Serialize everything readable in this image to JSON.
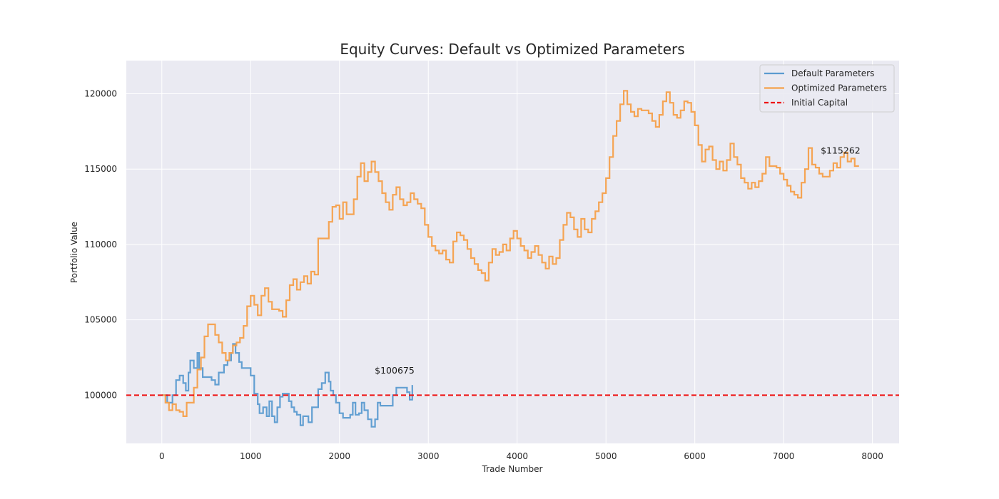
{
  "chart_data": {
    "type": "line",
    "title": "Equity Curves: Default vs Optimized Parameters",
    "xlabel": "Trade Number",
    "ylabel": "Portfolio Value",
    "xlim": [
      -400,
      8300
    ],
    "ylim": [
      96800,
      122200
    ],
    "x_ticks": [
      0,
      1000,
      2000,
      3000,
      4000,
      5000,
      6000,
      7000,
      8000
    ],
    "y_ticks": [
      100000,
      105000,
      110000,
      115000,
      120000
    ],
    "grid": true,
    "legend_position": "top-right",
    "series": [
      {
        "name": "Default Parameters",
        "color": "#5b9bd0",
        "points": [
          [
            0,
            100000
          ],
          [
            60,
            99500
          ],
          [
            120,
            100000
          ],
          [
            160,
            101000
          ],
          [
            200,
            101300
          ],
          [
            240,
            100800
          ],
          [
            270,
            100300
          ],
          [
            300,
            101500
          ],
          [
            320,
            102300
          ],
          [
            360,
            101800
          ],
          [
            400,
            102800
          ],
          [
            420,
            101800
          ],
          [
            460,
            101200
          ],
          [
            520,
            101200
          ],
          [
            560,
            101000
          ],
          [
            600,
            100700
          ],
          [
            640,
            101500
          ],
          [
            700,
            102000
          ],
          [
            740,
            102300
          ],
          [
            780,
            102800
          ],
          [
            800,
            103400
          ],
          [
            830,
            102800
          ],
          [
            870,
            102200
          ],
          [
            900,
            101800
          ],
          [
            960,
            101800
          ],
          [
            1000,
            101300
          ],
          [
            1040,
            100100
          ],
          [
            1080,
            99400
          ],
          [
            1100,
            98800
          ],
          [
            1140,
            99200
          ],
          [
            1180,
            98600
          ],
          [
            1210,
            99600
          ],
          [
            1240,
            98600
          ],
          [
            1270,
            98200
          ],
          [
            1300,
            99200
          ],
          [
            1330,
            99900
          ],
          [
            1360,
            100100
          ],
          [
            1400,
            100100
          ],
          [
            1430,
            99600
          ],
          [
            1460,
            99200
          ],
          [
            1490,
            98900
          ],
          [
            1520,
            98700
          ],
          [
            1560,
            98000
          ],
          [
            1590,
            98600
          ],
          [
            1620,
            98600
          ],
          [
            1650,
            98200
          ],
          [
            1690,
            99200
          ],
          [
            1720,
            99200
          ],
          [
            1760,
            100400
          ],
          [
            1800,
            100800
          ],
          [
            1840,
            101500
          ],
          [
            1880,
            100900
          ],
          [
            1900,
            100300
          ],
          [
            1930,
            100000
          ],
          [
            1960,
            99500
          ],
          [
            2000,
            98800
          ],
          [
            2040,
            98500
          ],
          [
            2080,
            98500
          ],
          [
            2120,
            98700
          ],
          [
            2150,
            99500
          ],
          [
            2180,
            98700
          ],
          [
            2220,
            98800
          ],
          [
            2250,
            99500
          ],
          [
            2280,
            99000
          ],
          [
            2320,
            98400
          ],
          [
            2360,
            97900
          ],
          [
            2400,
            98400
          ],
          [
            2430,
            99500
          ],
          [
            2460,
            99300
          ],
          [
            2500,
            99300
          ],
          [
            2560,
            99300
          ],
          [
            2600,
            100000
          ],
          [
            2640,
            100500
          ],
          [
            2700,
            100500
          ],
          [
            2740,
            100500
          ],
          [
            2760,
            100200
          ],
          [
            2790,
            99700
          ],
          [
            2820,
            100675
          ]
        ]
      },
      {
        "name": "Optimized Parameters",
        "color": "#f5a04a",
        "points": [
          [
            0,
            100000
          ],
          [
            40,
            99500
          ],
          [
            80,
            99000
          ],
          [
            120,
            99400
          ],
          [
            160,
            99000
          ],
          [
            200,
            98900
          ],
          [
            240,
            98600
          ],
          [
            280,
            99500
          ],
          [
            320,
            99500
          ],
          [
            360,
            100500
          ],
          [
            400,
            101700
          ],
          [
            440,
            102500
          ],
          [
            480,
            103900
          ],
          [
            520,
            104700
          ],
          [
            560,
            104700
          ],
          [
            600,
            104000
          ],
          [
            640,
            103500
          ],
          [
            680,
            102800
          ],
          [
            720,
            102300
          ],
          [
            760,
            102800
          ],
          [
            800,
            103300
          ],
          [
            840,
            103500
          ],
          [
            880,
            103800
          ],
          [
            920,
            104600
          ],
          [
            960,
            105900
          ],
          [
            1000,
            106600
          ],
          [
            1040,
            106000
          ],
          [
            1080,
            105300
          ],
          [
            1120,
            106600
          ],
          [
            1160,
            107100
          ],
          [
            1200,
            106200
          ],
          [
            1240,
            105700
          ],
          [
            1280,
            105700
          ],
          [
            1320,
            105600
          ],
          [
            1360,
            105200
          ],
          [
            1400,
            106300
          ],
          [
            1440,
            107300
          ],
          [
            1480,
            107700
          ],
          [
            1520,
            107000
          ],
          [
            1560,
            107500
          ],
          [
            1600,
            107900
          ],
          [
            1640,
            107400
          ],
          [
            1680,
            108200
          ],
          [
            1720,
            108000
          ],
          [
            1760,
            110400
          ],
          [
            1800,
            110400
          ],
          [
            1840,
            110400
          ],
          [
            1880,
            111500
          ],
          [
            1920,
            112500
          ],
          [
            1960,
            112600
          ],
          [
            2000,
            111700
          ],
          [
            2040,
            112800
          ],
          [
            2080,
            112000
          ],
          [
            2120,
            112000
          ],
          [
            2160,
            113000
          ],
          [
            2200,
            114500
          ],
          [
            2240,
            115400
          ],
          [
            2280,
            114200
          ],
          [
            2320,
            114800
          ],
          [
            2360,
            115500
          ],
          [
            2400,
            114800
          ],
          [
            2440,
            114200
          ],
          [
            2480,
            113400
          ],
          [
            2520,
            112800
          ],
          [
            2560,
            112300
          ],
          [
            2600,
            113300
          ],
          [
            2640,
            113800
          ],
          [
            2680,
            113000
          ],
          [
            2720,
            112600
          ],
          [
            2760,
            112800
          ],
          [
            2800,
            113400
          ],
          [
            2840,
            113000
          ],
          [
            2880,
            112700
          ],
          [
            2920,
            112400
          ],
          [
            2960,
            111300
          ],
          [
            3000,
            110500
          ],
          [
            3040,
            109900
          ],
          [
            3080,
            109600
          ],
          [
            3120,
            109400
          ],
          [
            3160,
            109600
          ],
          [
            3200,
            109000
          ],
          [
            3240,
            108800
          ],
          [
            3280,
            110200
          ],
          [
            3320,
            110800
          ],
          [
            3360,
            110600
          ],
          [
            3400,
            110300
          ],
          [
            3440,
            109700
          ],
          [
            3480,
            109100
          ],
          [
            3520,
            108700
          ],
          [
            3560,
            108300
          ],
          [
            3600,
            108100
          ],
          [
            3640,
            107600
          ],
          [
            3680,
            108800
          ],
          [
            3720,
            109700
          ],
          [
            3760,
            109300
          ],
          [
            3800,
            109500
          ],
          [
            3840,
            110000
          ],
          [
            3880,
            109600
          ],
          [
            3920,
            110400
          ],
          [
            3960,
            110900
          ],
          [
            4000,
            110400
          ],
          [
            4040,
            109900
          ],
          [
            4080,
            109600
          ],
          [
            4120,
            109100
          ],
          [
            4160,
            109500
          ],
          [
            4200,
            109900
          ],
          [
            4240,
            109300
          ],
          [
            4280,
            108800
          ],
          [
            4320,
            108400
          ],
          [
            4360,
            109200
          ],
          [
            4400,
            108700
          ],
          [
            4440,
            109100
          ],
          [
            4480,
            110300
          ],
          [
            4520,
            111300
          ],
          [
            4560,
            112100
          ],
          [
            4600,
            111800
          ],
          [
            4640,
            111000
          ],
          [
            4680,
            110500
          ],
          [
            4720,
            111700
          ],
          [
            4760,
            111000
          ],
          [
            4800,
            110800
          ],
          [
            4840,
            111700
          ],
          [
            4880,
            112200
          ],
          [
            4920,
            112800
          ],
          [
            4960,
            113400
          ],
          [
            5000,
            114400
          ],
          [
            5040,
            115800
          ],
          [
            5080,
            117200
          ],
          [
            5120,
            118200
          ],
          [
            5160,
            119300
          ],
          [
            5200,
            120200
          ],
          [
            5240,
            119300
          ],
          [
            5280,
            118800
          ],
          [
            5320,
            118500
          ],
          [
            5360,
            119000
          ],
          [
            5400,
            118900
          ],
          [
            5440,
            118900
          ],
          [
            5480,
            118700
          ],
          [
            5520,
            118200
          ],
          [
            5560,
            117800
          ],
          [
            5600,
            118600
          ],
          [
            5640,
            119500
          ],
          [
            5680,
            120100
          ],
          [
            5720,
            119400
          ],
          [
            5760,
            118600
          ],
          [
            5800,
            118400
          ],
          [
            5840,
            118900
          ],
          [
            5880,
            119500
          ],
          [
            5920,
            119400
          ],
          [
            5960,
            118800
          ],
          [
            6000,
            117900
          ],
          [
            6040,
            116600
          ],
          [
            6080,
            115500
          ],
          [
            6120,
            116300
          ],
          [
            6160,
            116500
          ],
          [
            6200,
            115600
          ],
          [
            6240,
            115000
          ],
          [
            6280,
            115500
          ],
          [
            6320,
            114900
          ],
          [
            6360,
            115600
          ],
          [
            6400,
            116700
          ],
          [
            6440,
            115800
          ],
          [
            6480,
            115300
          ],
          [
            6520,
            114400
          ],
          [
            6560,
            114100
          ],
          [
            6600,
            113700
          ],
          [
            6640,
            114100
          ],
          [
            6680,
            113800
          ],
          [
            6720,
            114200
          ],
          [
            6760,
            114700
          ],
          [
            6800,
            115800
          ],
          [
            6840,
            115200
          ],
          [
            6880,
            115200
          ],
          [
            6920,
            115100
          ],
          [
            6960,
            114700
          ],
          [
            7000,
            114300
          ],
          [
            7040,
            113900
          ],
          [
            7080,
            113500
          ],
          [
            7120,
            113300
          ],
          [
            7160,
            113100
          ],
          [
            7200,
            114100
          ],
          [
            7240,
            115000
          ],
          [
            7280,
            116400
          ],
          [
            7320,
            115300
          ],
          [
            7360,
            115100
          ],
          [
            7400,
            114700
          ],
          [
            7440,
            114500
          ],
          [
            7480,
            114500
          ],
          [
            7520,
            114900
          ],
          [
            7560,
            115400
          ],
          [
            7600,
            115100
          ],
          [
            7640,
            115800
          ],
          [
            7680,
            116100
          ],
          [
            7720,
            115500
          ],
          [
            7760,
            115700
          ],
          [
            7800,
            115200
          ],
          [
            7840,
            115262
          ]
        ]
      },
      {
        "name": "Initial Capital",
        "color": "#ee1111",
        "style": "dashed",
        "y": 100000
      }
    ],
    "annotations": [
      {
        "text": "$100675",
        "x": 2820,
        "y": 100675
      },
      {
        "text": "$115262",
        "x": 7840,
        "y": 115262
      }
    ]
  }
}
